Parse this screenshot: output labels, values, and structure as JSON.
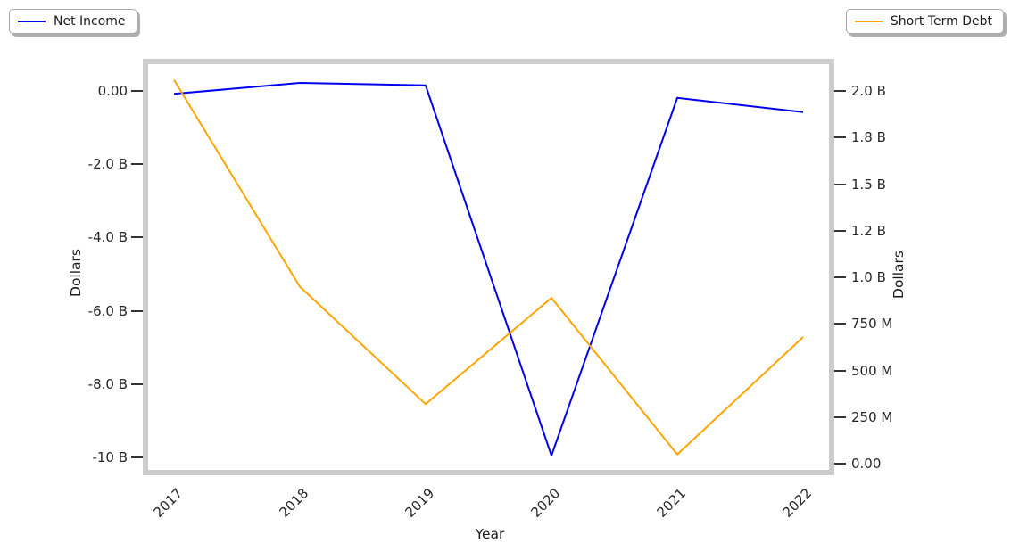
{
  "legend": {
    "net_income_label": "Net Income",
    "short_term_debt_label": "Short Term Debt"
  },
  "axes": {
    "x_label": "Year",
    "left_label": "Dollars",
    "right_label": "Dollars"
  },
  "colors": {
    "net_income": "#0000EE",
    "short_term_debt": "#FFA500",
    "plot_border": "#cccccc",
    "tick_mark": "#333333"
  },
  "chart_data": {
    "type": "line",
    "x": [
      "2017",
      "2018",
      "2019",
      "2020",
      "2021",
      "2022"
    ],
    "series": [
      {
        "name": "Net Income",
        "axis": "left",
        "color": "#0000EE",
        "values_billions": [
          -0.08,
          0.22,
          0.15,
          -9.95,
          -0.19,
          -0.58
        ]
      },
      {
        "name": "Short Term Debt",
        "axis": "right",
        "color": "#FFA500",
        "values_billions": [
          2.06,
          0.95,
          0.32,
          0.89,
          0.05,
          0.68
        ]
      }
    ],
    "title": "",
    "xlabel": "Year",
    "left_axis": {
      "label": "Dollars",
      "range_billions": [
        -10.34,
        0.73
      ],
      "ticks": [
        {
          "v": 0,
          "label": "0.00"
        },
        {
          "v": -2,
          "label": "-2.0 B"
        },
        {
          "v": -4,
          "label": "-4.0 B"
        },
        {
          "v": -6,
          "label": "-6.0 B"
        },
        {
          "v": -8,
          "label": "-8.0 B"
        },
        {
          "v": -10,
          "label": "-10 B"
        }
      ]
    },
    "right_axis": {
      "label": "Dollars",
      "range_billions": [
        -0.033,
        2.144
      ],
      "ticks": [
        {
          "v": 2.0,
          "label": "2.0 B"
        },
        {
          "v": 1.75,
          "label": "1.8 B"
        },
        {
          "v": 1.5,
          "label": "1.5 B"
        },
        {
          "v": 1.25,
          "label": "1.2 B"
        },
        {
          "v": 1.0,
          "label": "1.0 B"
        },
        {
          "v": 0.75,
          "label": "750 M"
        },
        {
          "v": 0.5,
          "label": "500 M"
        },
        {
          "v": 0.25,
          "label": "250 M"
        },
        {
          "v": 0,
          "label": "0.00"
        }
      ]
    },
    "grid": false,
    "legend_positions": [
      "upper left (outside)",
      "upper right (outside)"
    ]
  }
}
